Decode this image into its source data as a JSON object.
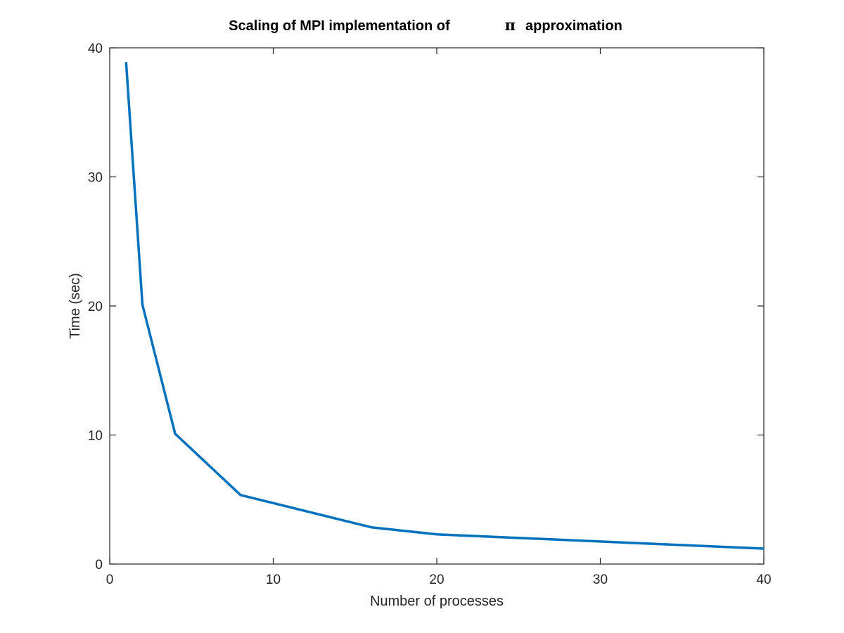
{
  "chart_data": {
    "type": "line",
    "title": "Scaling of MPI implementation of",
    "title_symbol": "π",
    "title_suffix": "approximation",
    "xlabel": "Number of processes",
    "ylabel": "Time (sec)",
    "xlim": [
      0,
      40
    ],
    "ylim": [
      0,
      40
    ],
    "xticks": [
      0,
      10,
      20,
      30,
      40
    ],
    "yticks": [
      0,
      10,
      20,
      30,
      40
    ],
    "grid": false,
    "series": [
      {
        "name": "time",
        "color": "#0072BD",
        "x": [
          1,
          2,
          4,
          8,
          16,
          20,
          40
        ],
        "y": [
          38.9,
          20.1,
          10.1,
          5.35,
          2.85,
          2.3,
          1.2
        ]
      }
    ]
  }
}
